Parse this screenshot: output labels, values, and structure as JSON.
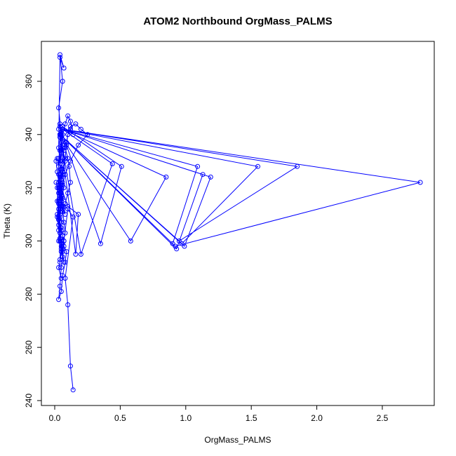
{
  "chart_data": {
    "type": "line",
    "title": "ATOM2 Northbound OrgMass_PALMS",
    "xlabel": "OrgMass_PALMS",
    "ylabel": "Theta (K)",
    "xlim": [
      0,
      2.8
    ],
    "ylim": [
      240,
      370
    ],
    "xticks": [
      0.0,
      0.5,
      1.0,
      1.5,
      2.0,
      2.5
    ],
    "xtick_labels": [
      "0.0",
      "0.5",
      "1.0",
      "1.5",
      "2.0",
      "2.5"
    ],
    "yticks": [
      240,
      260,
      280,
      300,
      320,
      340,
      360
    ],
    "ytick_labels": [
      "240",
      "260",
      "280",
      "300",
      "320",
      "340",
      "360"
    ],
    "grid": false,
    "legend": "none",
    "marker": "open-circle",
    "color": "#0000ff",
    "series": [
      {
        "x": [
          0.14,
          0.12,
          0.1,
          0.08,
          0.14,
          0.1,
          0.07,
          0.05,
          0.04,
          0.03,
          0.05,
          0.06,
          0.08,
          0.09,
          0.07,
          0.06,
          0.05,
          0.04,
          0.06,
          0.07,
          0.05,
          0.03,
          0.03,
          0.04,
          0.05,
          0.06,
          0.07,
          0.08,
          0.06,
          0.05,
          0.04,
          0.03,
          0.02,
          0.03,
          0.04,
          0.05,
          0.06,
          0.07,
          0.05,
          0.04,
          0.03,
          0.02,
          0.03,
          0.04,
          0.05,
          0.03,
          0.02,
          0.01,
          0.02,
          0.03,
          0.04,
          0.05,
          0.06,
          0.08,
          0.09,
          0.1,
          0.12,
          0.14,
          0.12,
          0.1,
          0.08,
          0.06,
          0.05,
          0.04,
          0.03,
          0.04,
          0.05,
          0.06,
          0.04,
          0.03,
          0.04,
          0.05,
          0.06,
          0.08,
          0.1,
          0.11,
          0.12,
          0.1,
          0.08,
          0.06,
          0.05,
          0.04,
          0.05,
          0.06,
          0.07,
          0.06,
          0.05,
          0.04,
          0.04,
          0.04,
          0.05,
          0.04,
          0.03,
          0.04,
          0.05,
          0.06,
          0.07,
          0.09,
          0.1,
          0.12,
          0.16,
          0.2,
          0.25,
          0.18,
          0.12,
          0.08,
          0.06,
          0.05,
          0.04,
          0.03,
          0.02,
          0.01,
          0.03,
          0.05,
          0.06,
          0.08,
          0.07,
          0.06,
          0.05,
          0.04,
          0.03,
          0.04,
          0.05,
          0.04,
          0.03,
          0.02,
          0.04,
          0.06,
          0.08,
          0.06,
          0.04,
          0.35,
          0.51,
          0.06,
          0.04,
          0.2,
          0.44,
          0.06,
          0.04,
          0.58,
          0.85,
          0.06,
          0.04,
          0.9,
          1.09,
          0.06,
          0.04,
          0.93,
          1.13,
          0.06,
          0.04,
          0.99,
          1.19,
          0.06,
          0.04,
          0.97,
          1.55,
          0.06,
          0.04,
          0.95,
          1.85,
          0.06,
          0.04,
          0.92,
          2.79,
          0.06,
          0.04,
          0.16,
          0.18,
          0.1,
          0.05,
          0.04,
          0.05,
          0.03,
          0.06,
          0.04,
          0.07,
          0.04,
          0.03,
          0.05,
          0.04,
          0.06,
          0.05,
          0.04,
          0.03,
          0.05,
          0.04,
          0.03,
          0.05
        ],
        "y": [
          244,
          253,
          276,
          286,
          309,
          312,
          300,
          290,
          283,
          278,
          281,
          287,
          292,
          296,
          298,
          302,
          305,
          293,
          297,
          300,
          304,
          308,
          312,
          316,
          318,
          313,
          307,
          303,
          299,
          297,
          300,
          304,
          309,
          314,
          319,
          323,
          326,
          320,
          316,
          311,
          306,
          310,
          315,
          320,
          324,
          328,
          331,
          330,
          326,
          322,
          319,
          323,
          327,
          331,
          336,
          340,
          342,
          340,
          345,
          347,
          344,
          340,
          337,
          334,
          331,
          329,
          333,
          336,
          339,
          342,
          344,
          341,
          338,
          335,
          331,
          328,
          322,
          318,
          314,
          311,
          307,
          303,
          300,
          296,
          292,
          294,
          298,
          301,
          305,
          309,
          313,
          317,
          320,
          324,
          327,
          330,
          334,
          337,
          340,
          343,
          344,
          342,
          340,
          336,
          330,
          325,
          321,
          317,
          313,
          309,
          320,
          322,
          318,
          315,
          312,
          310,
          313,
          316,
          319,
          322,
          325,
          320,
          316,
          312,
          308,
          315,
          340,
          335,
          330,
          325,
          343,
          299,
          328,
          343,
          340,
          295,
          329,
          342,
          340,
          300,
          324,
          342,
          340,
          299,
          328,
          342,
          340,
          297,
          325,
          342,
          340,
          298,
          324,
          342,
          340,
          299,
          328,
          342,
          340,
          300,
          328,
          342,
          340,
          298,
          322,
          342,
          340,
          295,
          310,
          313,
          320,
          330,
          340,
          350,
          360,
          370,
          365,
          369,
          335,
          325,
          318,
          322,
          316,
          312,
          300,
          296,
          292,
          290,
          286
        ]
      }
    ]
  }
}
